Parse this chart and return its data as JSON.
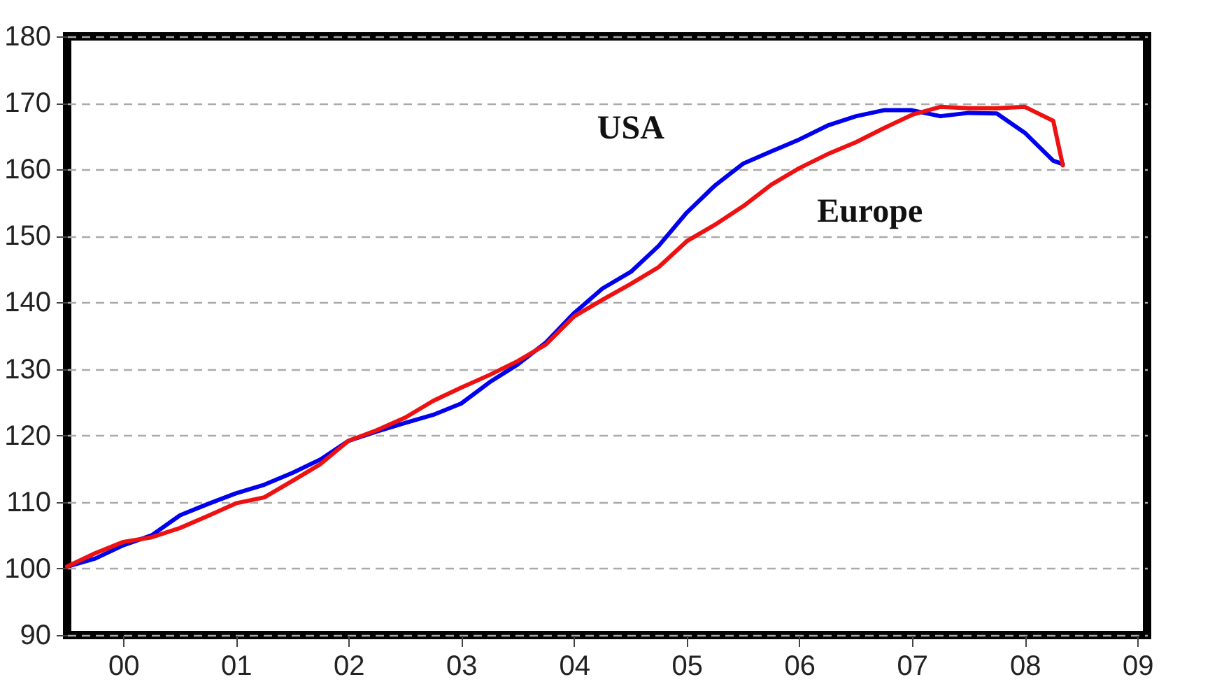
{
  "chart_data": {
    "type": "line",
    "x": [
      "2000-01",
      "2000-04",
      "2000-07",
      "2000-10",
      "2001-01",
      "2001-04",
      "2001-07",
      "2001-10",
      "2002-01",
      "2002-04",
      "2002-07",
      "2002-10",
      "2003-01",
      "2003-04",
      "2003-07",
      "2003-10",
      "2004-01",
      "2004-04",
      "2004-07",
      "2004-10",
      "2005-01",
      "2005-04",
      "2005-07",
      "2005-10",
      "2006-01",
      "2006-04",
      "2006-07",
      "2006-10",
      "2007-01",
      "2007-04",
      "2007-07",
      "2007-10",
      "2008-01",
      "2008-04",
      "2008-07",
      "2008-10",
      "2008-11"
    ],
    "series": [
      {
        "name": "USA",
        "color": "#0000ee",
        "values": [
          100.3,
          101.5,
          103.5,
          105,
          108,
          109.7,
          111.3,
          112.6,
          114.4,
          116.4,
          119.2,
          120.6,
          121.9,
          123.1,
          124.8,
          128,
          130.7,
          134,
          138.4,
          142.1,
          144.6,
          148.5,
          153.5,
          157.6,
          160.9,
          162.7,
          164.5,
          166.6,
          168,
          168.9,
          168.9,
          168,
          168.5,
          168.4,
          165.5,
          161.3,
          160.8
        ]
      },
      {
        "name": "Europe",
        "color": "#ee1111",
        "values": [
          100.3,
          102.3,
          104,
          104.7,
          106.1,
          107.9,
          109.8,
          110.7,
          113.2,
          115.7,
          119.2,
          120.8,
          122.7,
          125.2,
          127.2,
          129.1,
          131.2,
          133.7,
          137.9,
          140.4,
          142.8,
          145.3,
          149.2,
          151.7,
          154.5,
          157.7,
          160.2,
          162.3,
          164.1,
          166.2,
          168.2,
          169.4,
          169.2,
          169.2,
          169.4,
          167.3,
          160.6
        ]
      }
    ],
    "xlim": [
      "2000-01",
      "2009-08"
    ],
    "xticks": [
      {
        "value": "2000-07",
        "label": "00"
      },
      {
        "value": "2001-07",
        "label": "01"
      },
      {
        "value": "2002-07",
        "label": "02"
      },
      {
        "value": "2003-07",
        "label": "03"
      },
      {
        "value": "2004-07",
        "label": "04"
      },
      {
        "value": "2005-07",
        "label": "05"
      },
      {
        "value": "2006-07",
        "label": "06"
      },
      {
        "value": "2007-07",
        "label": "07"
      },
      {
        "value": "2008-07",
        "label": "08"
      },
      {
        "value": "2009-07",
        "label": "09"
      }
    ],
    "ylim": [
      90,
      180
    ],
    "yticks": [
      90,
      100,
      110,
      120,
      130,
      140,
      150,
      160,
      170,
      180
    ],
    "grid": "y",
    "legend": false,
    "line_style": "solid"
  }
}
